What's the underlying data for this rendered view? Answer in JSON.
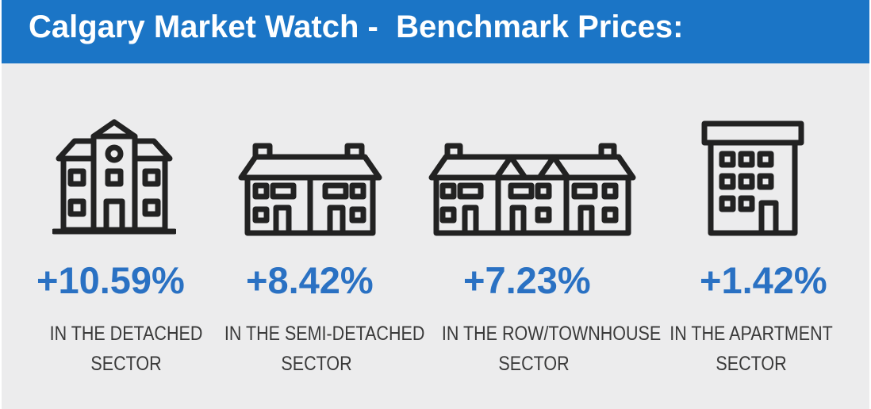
{
  "header": {
    "title": "Calgary Market Watch -  Benchmark Prices:"
  },
  "colors": {
    "banner": "#1b75c6",
    "percent": "#2a71c3",
    "background": "#ececed"
  },
  "sectors": [
    {
      "icon": "detached-house-icon",
      "percent": "+10.59%",
      "line1": "IN THE DETACHED",
      "line2": "SECTOR"
    },
    {
      "icon": "semi-detached-house-icon",
      "percent": "+8.42%",
      "line1": "IN THE SEMI-DETACHED",
      "line2": "SECTOR"
    },
    {
      "icon": "townhouse-icon",
      "percent": "+7.23%",
      "line1": "IN THE ROW/TOWNHOUSE",
      "line2": "SECTOR"
    },
    {
      "icon": "apartment-building-icon",
      "percent": "+1.42%",
      "line1": "IN THE APARTMENT",
      "line2": "SECTOR"
    }
  ]
}
